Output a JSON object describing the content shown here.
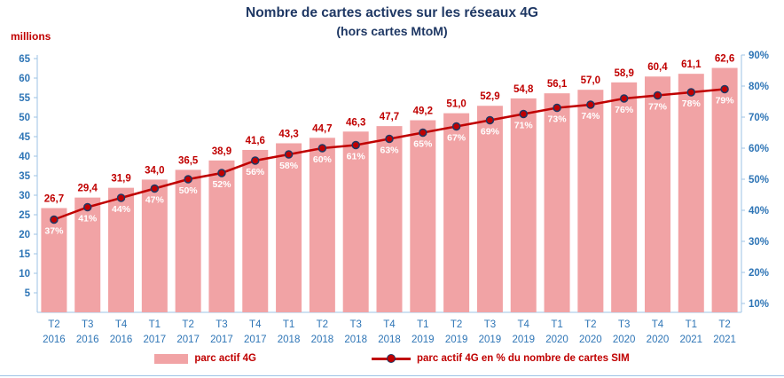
{
  "title": "Nombre de cartes actives sur les réseaux  4G",
  "subtitle": "(hors cartes MtoM)",
  "axis_unit_label": "millions",
  "legend": {
    "bar_label": "parc actif 4G",
    "line_label": "parc actif 4G en % du nombre de cartes SIM"
  },
  "colors": {
    "title_text": "#1F3864",
    "axis_text": "#2E75B6",
    "axis_line": "#9DC3E6",
    "bar_fill": "#F1A3A5",
    "line": "#C00000",
    "marker_fill": "#C00000",
    "marker_stroke": "#1F3864",
    "value_label": "#C00000",
    "percent_label": "#FFFFFF",
    "legend_text": "#C00000"
  },
  "chart_data": {
    "type": "bar",
    "combo": "bar+line",
    "title": "Nombre de cartes actives sur les réseaux  4G",
    "subtitle": "(hors cartes MtoM)",
    "categories": [
      [
        "T2",
        "2016"
      ],
      [
        "T3",
        "2016"
      ],
      [
        "T4",
        "2016"
      ],
      [
        "T1",
        "2017"
      ],
      [
        "T2",
        "2017"
      ],
      [
        "T3",
        "2017"
      ],
      [
        "T4",
        "2017"
      ],
      [
        "T1",
        "2018"
      ],
      [
        "T2",
        "2018"
      ],
      [
        "T3",
        "2018"
      ],
      [
        "T4",
        "2018"
      ],
      [
        "T1",
        "2019"
      ],
      [
        "T2",
        "2019"
      ],
      [
        "T3",
        "2019"
      ],
      [
        "T4",
        "2019"
      ],
      [
        "T1",
        "2020"
      ],
      [
        "T2",
        "2020"
      ],
      [
        "T3",
        "2020"
      ],
      [
        "T4",
        "2020"
      ],
      [
        "T1",
        "2021"
      ],
      [
        "T2",
        "2021"
      ]
    ],
    "series": [
      {
        "name": "parc actif 4G",
        "type": "bar",
        "axis": "left",
        "unit": "millions",
        "values": [
          26.7,
          29.4,
          31.9,
          34.0,
          36.5,
          38.9,
          41.6,
          43.3,
          44.7,
          46.3,
          47.7,
          49.2,
          51.0,
          52.9,
          54.8,
          56.1,
          57.0,
          58.9,
          60.4,
          61.1,
          62.6
        ],
        "labels": [
          "26,7",
          "29,4",
          "31,9",
          "34,0",
          "36,5",
          "38,9",
          "41,6",
          "43,3",
          "44,7",
          "46,3",
          "47,7",
          "49,2",
          "51,0",
          "52,9",
          "54,8",
          "56,1",
          "57,0",
          "58,9",
          "60,4",
          "61,1",
          "62,6"
        ]
      },
      {
        "name": "parc actif 4G en % du nombre de cartes SIM",
        "type": "line",
        "axis": "right",
        "unit": "%",
        "values": [
          37,
          41,
          44,
          47,
          50,
          52,
          56,
          58,
          60,
          61,
          63,
          65,
          67,
          69,
          71,
          73,
          74,
          76,
          77,
          78,
          79
        ],
        "labels": [
          "37%",
          "41%",
          "44%",
          "47%",
          "50%",
          "52%",
          "56%",
          "58%",
          "60%",
          "61%",
          "63%",
          "65%",
          "67%",
          "69%",
          "71%",
          "73%",
          "74%",
          "76%",
          "77%",
          "78%",
          "79%"
        ]
      }
    ],
    "left_axis": {
      "min": 0,
      "max": 65,
      "ticks": [
        5,
        10,
        15,
        20,
        25,
        30,
        35,
        40,
        45,
        50,
        55,
        60,
        65
      ],
      "unit_label": "millions"
    },
    "right_axis": {
      "ticks_percent": [
        10,
        20,
        30,
        40,
        50,
        60,
        70,
        80,
        90
      ]
    },
    "grid": false,
    "legend_position": "bottom"
  }
}
